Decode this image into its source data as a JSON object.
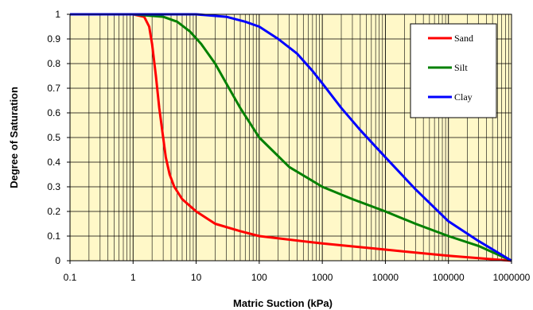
{
  "chart_data": {
    "type": "line",
    "title": "",
    "xlabel": "Matric Suction (kPa)",
    "ylabel": "Degree of Saturation",
    "x_scale": "log",
    "xlim": [
      0.1,
      1000000
    ],
    "ylim": [
      0,
      1
    ],
    "x_ticks": [
      "0.1",
      "1",
      "10",
      "100",
      "1000",
      "10000",
      "100000",
      "1000000"
    ],
    "y_ticks": [
      "0",
      "0.1",
      "0.2",
      "0.3",
      "0.4",
      "0.5",
      "0.6",
      "0.7",
      "0.8",
      "0.9",
      "1"
    ],
    "grid": true,
    "plot_background": "#fff8c8",
    "legend_position": "top-right",
    "series": [
      {
        "name": "Sand",
        "color": "#ff0000",
        "x": [
          0.1,
          1,
          1.5,
          1.8,
          2.0,
          2.3,
          2.6,
          3.0,
          3.3,
          3.8,
          4.5,
          6,
          10,
          20,
          50,
          100,
          1000,
          10000,
          100000,
          1000000
        ],
        "y": [
          1.0,
          1.0,
          0.99,
          0.95,
          0.88,
          0.75,
          0.62,
          0.5,
          0.42,
          0.35,
          0.3,
          0.25,
          0.2,
          0.15,
          0.12,
          0.1,
          0.07,
          0.045,
          0.02,
          0.0
        ]
      },
      {
        "name": "Silt",
        "color": "#008000",
        "x": [
          0.1,
          1,
          3,
          5,
          8,
          12,
          20,
          30,
          50,
          100,
          300,
          1000,
          3000,
          10000,
          30000,
          100000,
          300000,
          1000000
        ],
        "y": [
          1.0,
          1.0,
          0.99,
          0.97,
          0.93,
          0.88,
          0.8,
          0.72,
          0.62,
          0.5,
          0.38,
          0.3,
          0.25,
          0.2,
          0.15,
          0.1,
          0.06,
          0.0
        ]
      },
      {
        "name": "Clay",
        "color": "#0000ff",
        "x": [
          0.1,
          1,
          10,
          30,
          60,
          100,
          200,
          400,
          700,
          1000,
          2000,
          4000,
          10000,
          30000,
          100000,
          300000,
          1000000
        ],
        "y": [
          1.0,
          1.0,
          1.0,
          0.99,
          0.97,
          0.95,
          0.9,
          0.84,
          0.77,
          0.72,
          0.62,
          0.53,
          0.42,
          0.29,
          0.16,
          0.08,
          0.0
        ]
      }
    ]
  }
}
